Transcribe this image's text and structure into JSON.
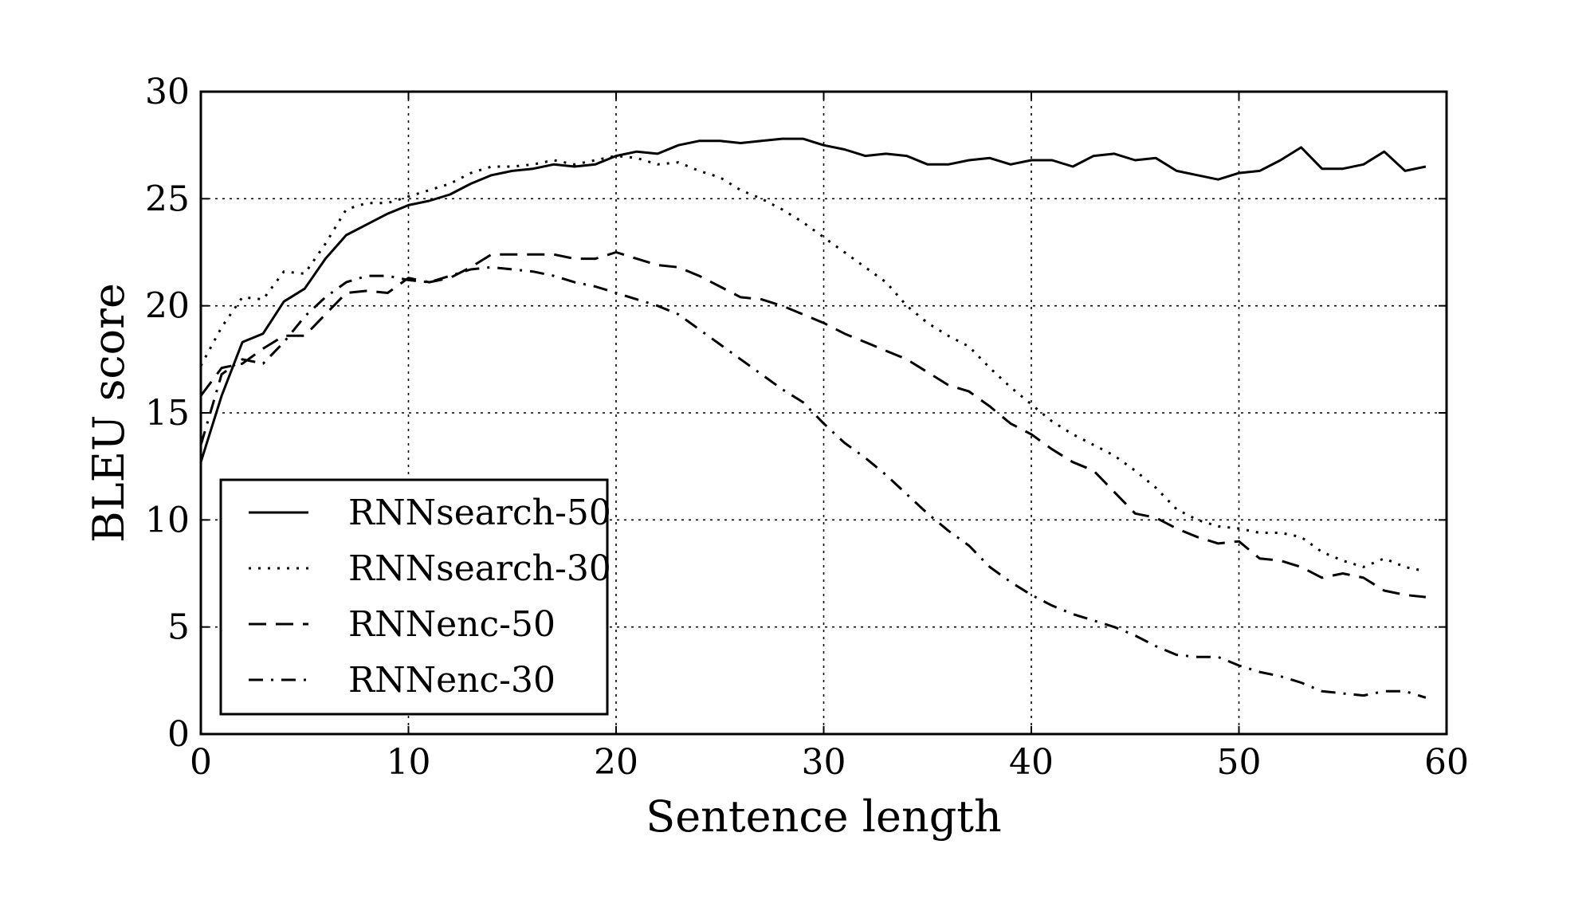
{
  "chart_data": {
    "type": "line",
    "xlabel": "Sentence length",
    "ylabel": "BLEU score",
    "xlim": [
      0,
      60
    ],
    "ylim": [
      0,
      30
    ],
    "xticks": [
      0,
      10,
      20,
      30,
      40,
      50,
      60
    ],
    "yticks": [
      0,
      5,
      10,
      15,
      20,
      25,
      30
    ],
    "grid": true,
    "legend_position": "lower-left",
    "series": [
      {
        "name": "RNNsearch-50",
        "style": "solid",
        "x": [
          0,
          1,
          2,
          3,
          4,
          5,
          6,
          7,
          8,
          9,
          10,
          11,
          12,
          13,
          14,
          15,
          16,
          17,
          18,
          19,
          20,
          21,
          22,
          23,
          24,
          25,
          26,
          27,
          28,
          29,
          30,
          31,
          32,
          33,
          34,
          35,
          36,
          37,
          38,
          39,
          40,
          41,
          42,
          43,
          44,
          45,
          46,
          47,
          48,
          49,
          50,
          51,
          52,
          53,
          54,
          55,
          56,
          57,
          58,
          59
        ],
        "values": [
          12.7,
          15.8,
          18.3,
          18.7,
          20.2,
          20.8,
          22.2,
          23.3,
          23.8,
          24.3,
          24.7,
          24.9,
          25.2,
          25.7,
          26.1,
          26.3,
          26.4,
          26.6,
          26.5,
          26.6,
          27.0,
          27.2,
          27.1,
          27.5,
          27.7,
          27.7,
          27.6,
          27.7,
          27.8,
          27.8,
          27.5,
          27.3,
          27.0,
          27.1,
          27.0,
          26.6,
          26.6,
          26.8,
          26.9,
          26.6,
          26.8,
          26.8,
          26.5,
          27.0,
          27.1,
          26.8,
          26.9,
          26.3,
          26.1,
          25.9,
          26.2,
          26.3,
          26.8,
          27.4,
          26.4,
          26.4,
          26.6,
          27.2,
          26.3,
          26.5
        ]
      },
      {
        "name": "RNNsearch-30",
        "style": "dotted",
        "x": [
          0,
          1,
          2,
          3,
          4,
          5,
          6,
          7,
          8,
          9,
          10,
          11,
          12,
          13,
          14,
          15,
          16,
          17,
          18,
          19,
          20,
          21,
          22,
          23,
          24,
          25,
          26,
          27,
          28,
          29,
          30,
          31,
          32,
          33,
          34,
          35,
          36,
          37,
          38,
          39,
          40,
          41,
          42,
          43,
          44,
          45,
          46,
          47,
          48,
          49,
          50,
          51,
          52,
          53,
          54,
          55,
          56,
          57,
          58,
          59
        ],
        "values": [
          17.2,
          19.0,
          20.4,
          20.3,
          21.6,
          21.5,
          22.9,
          24.5,
          24.8,
          24.8,
          25.1,
          25.4,
          25.7,
          26.2,
          26.5,
          26.5,
          26.6,
          26.8,
          26.6,
          26.8,
          27.0,
          26.9,
          26.6,
          26.7,
          26.3,
          26.0,
          25.4,
          25.0,
          24.5,
          23.9,
          23.2,
          22.5,
          21.8,
          21.1,
          20.0,
          19.2,
          18.6,
          18.1,
          17.1,
          16.2,
          15.4,
          14.6,
          14.0,
          13.5,
          13.0,
          12.3,
          11.5,
          10.5,
          10.0,
          9.7,
          9.6,
          9.4,
          9.4,
          9.2,
          8.5,
          8.1,
          7.8,
          8.2,
          7.8,
          7.6
        ]
      },
      {
        "name": "RNNenc-50",
        "style": "dashed",
        "x": [
          0,
          1,
          2,
          3,
          4,
          5,
          6,
          7,
          8,
          9,
          10,
          11,
          12,
          13,
          14,
          15,
          16,
          17,
          18,
          19,
          20,
          21,
          22,
          23,
          24,
          25,
          26,
          27,
          28,
          29,
          30,
          31,
          32,
          33,
          34,
          35,
          36,
          37,
          38,
          39,
          40,
          41,
          42,
          43,
          44,
          45,
          46,
          47,
          48,
          49,
          50,
          51,
          52,
          53,
          54,
          55,
          56,
          57,
          58,
          59
        ],
        "values": [
          15.8,
          17.1,
          17.3,
          18.0,
          18.6,
          18.6,
          19.6,
          20.6,
          20.7,
          20.6,
          21.3,
          21.1,
          21.3,
          21.8,
          22.4,
          22.4,
          22.4,
          22.4,
          22.2,
          22.2,
          22.5,
          22.2,
          21.9,
          21.8,
          21.4,
          20.9,
          20.4,
          20.3,
          20.0,
          19.6,
          19.2,
          18.7,
          18.3,
          17.9,
          17.5,
          16.9,
          16.3,
          16.0,
          15.3,
          14.5,
          14.0,
          13.3,
          12.7,
          12.3,
          11.3,
          10.3,
          10.1,
          9.6,
          9.2,
          8.9,
          9.0,
          8.2,
          8.1,
          7.8,
          7.3,
          7.5,
          7.3,
          6.7,
          6.5,
          6.4
        ]
      },
      {
        "name": "RNNenc-30",
        "style": "dashdot",
        "x": [
          0,
          1,
          2,
          3,
          4,
          5,
          6,
          7,
          8,
          9,
          10,
          11,
          12,
          13,
          14,
          15,
          16,
          17,
          18,
          19,
          20,
          21,
          22,
          23,
          24,
          25,
          26,
          27,
          28,
          29,
          30,
          31,
          32,
          33,
          34,
          35,
          36,
          37,
          38,
          39,
          40,
          41,
          42,
          43,
          44,
          45,
          46,
          47,
          48,
          49,
          50,
          51,
          52,
          53,
          54,
          55,
          56,
          57,
          58,
          59
        ],
        "values": [
          13.5,
          16.8,
          17.5,
          17.3,
          18.3,
          19.5,
          20.4,
          21.1,
          21.4,
          21.4,
          21.2,
          21.1,
          21.4,
          21.7,
          21.8,
          21.7,
          21.6,
          21.4,
          21.1,
          20.9,
          20.6,
          20.3,
          20.0,
          19.6,
          18.9,
          18.2,
          17.5,
          16.8,
          16.1,
          15.5,
          14.5,
          13.6,
          12.9,
          12.1,
          11.2,
          10.3,
          9.5,
          8.8,
          7.8,
          7.1,
          6.5,
          6.0,
          5.6,
          5.3,
          5.0,
          4.6,
          4.1,
          3.7,
          3.6,
          3.6,
          3.2,
          2.9,
          2.7,
          2.4,
          2.0,
          1.9,
          1.8,
          2.0,
          2.0,
          1.7
        ]
      }
    ]
  }
}
